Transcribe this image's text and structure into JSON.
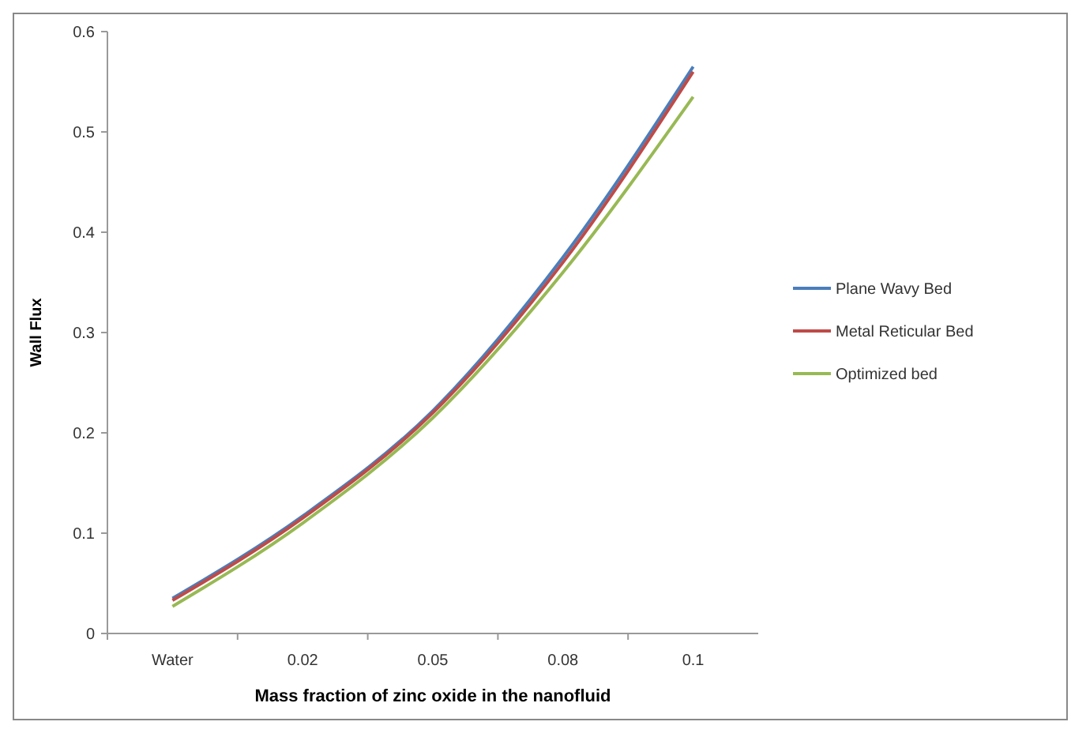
{
  "chart_data": {
    "type": "line",
    "xlabel": "Mass fraction of zinc oxide in the nanofluid",
    "ylabel": "Wall Flux",
    "categories": [
      "Water",
      "0.02",
      "0.05",
      "0.08",
      "0.1"
    ],
    "series": [
      {
        "name": "Plane Wavy Bed",
        "color": "#4a7ebb",
        "values": [
          0.035,
          0.117,
          0.222,
          0.375,
          0.565
        ]
      },
      {
        "name": "Metal Reticular Bed",
        "color": "#be4b48",
        "values": [
          0.033,
          0.115,
          0.22,
          0.37,
          0.56
        ]
      },
      {
        "name": "Optimized bed",
        "color": "#98b954",
        "values": [
          0.027,
          0.11,
          0.215,
          0.36,
          0.535
        ]
      }
    ],
    "ylim": [
      0,
      0.6
    ],
    "yticks": [
      0,
      0.1,
      0.2,
      0.3,
      0.4,
      0.5,
      0.6
    ],
    "grid": false,
    "legend": "right",
    "marker": "none",
    "line_style": "solid"
  }
}
